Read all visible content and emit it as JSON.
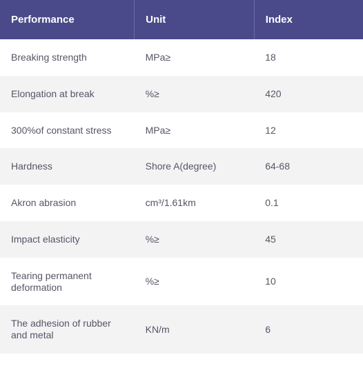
{
  "table": {
    "header_bg": "#4a4a8a",
    "header_text_color": "#ffffff",
    "header_fontsize": 15,
    "header_fontweight": 600,
    "row_odd_bg": "#ffffff",
    "row_even_bg": "#f3f3f4",
    "cell_text_color": "#555566",
    "cell_fontsize": 14,
    "header_divider_color": "#6a6aa5",
    "columns": [
      {
        "key": "performance",
        "label": "Performance",
        "width": "37%"
      },
      {
        "key": "unit",
        "label": "Unit",
        "width": "33%"
      },
      {
        "key": "index",
        "label": "Index",
        "width": "30%"
      }
    ],
    "rows": [
      {
        "performance": "Breaking strength",
        "unit": "MPa≥",
        "index": "18"
      },
      {
        "performance": "Elongation at break",
        "unit": "%≥",
        "index": "420"
      },
      {
        "performance": "300%of constant stress",
        "unit": "MPa≥",
        "index": "12"
      },
      {
        "performance": "Hardness",
        "unit": "Shore A(degree)",
        "index": "64-68"
      },
      {
        "performance": "Akron abrasion",
        "unit": "cm³/1.61km",
        "index": "0.1"
      },
      {
        "performance": "Impact elasticity",
        "unit": "%≥",
        "index": "45"
      },
      {
        "performance": "Tearing permanent deformation",
        "unit": "%≥",
        "index": "10"
      },
      {
        "performance": "The adhesion of rubber and metal",
        "unit": "KN/m",
        "index": "6"
      }
    ]
  }
}
